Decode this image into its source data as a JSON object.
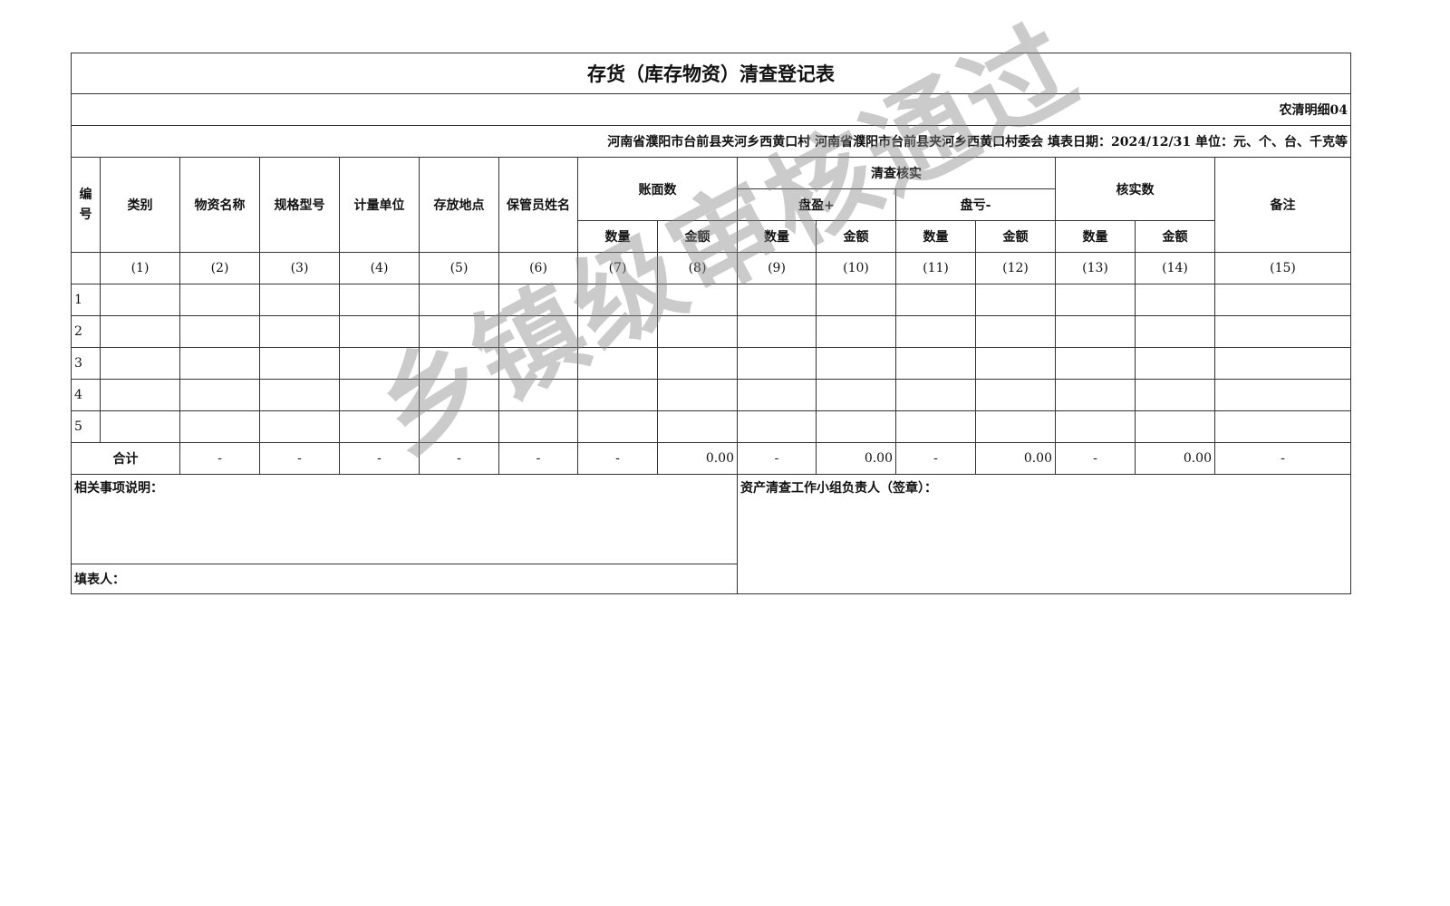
{
  "title": "存货（库存物资）清查登记表",
  "form_code": "农清明细04",
  "info_line": "河南省濮阳市台前县夹河乡西黄口村  河南省濮阳市台前县夹河乡西黄口村委会  填表日期：2024/12/31  单位：元、个、台、千克等",
  "headers": {
    "no": "编号",
    "category": "类别",
    "name": "物资名称",
    "spec": "规格型号",
    "unit": "计量单位",
    "location": "存放地点",
    "keeper": "保管员姓名",
    "book": "账面数",
    "check": "清查核实",
    "surplus": "盘盈+",
    "deficit": "盘亏-",
    "verified": "核实数",
    "remark": "备注",
    "qty": "数量",
    "amount": "金额"
  },
  "col_numbers": [
    "(1)",
    "(2)",
    "(3)",
    "(4)",
    "(5)",
    "(6)",
    "(7)",
    "(8)",
    "(9)",
    "(10)",
    "(11)",
    "(12)",
    "(13)",
    "(14)",
    "(15)"
  ],
  "rows": [
    "1",
    "2",
    "3",
    "4",
    "5"
  ],
  "total": {
    "label": "合计",
    "values": [
      "-",
      "-",
      "-",
      "-",
      "-",
      "-",
      "0.00",
      "-",
      "0.00",
      "-",
      "0.00",
      "-",
      "0.00",
      "-"
    ]
  },
  "notes_label": "相关事项说明：",
  "leader_label": "资产清查工作小组负责人（签章）：",
  "filler_label": "填表人：",
  "watermark": "乡镇级审核通过"
}
